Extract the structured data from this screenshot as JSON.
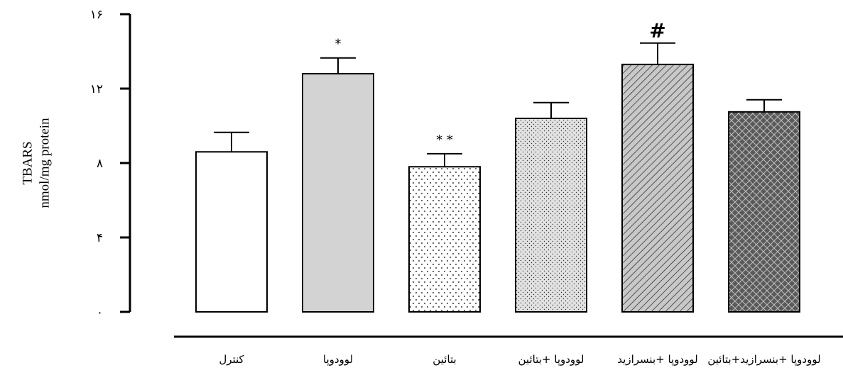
{
  "chart_data": {
    "type": "bar",
    "ylabel_line1": "TBARS",
    "ylabel_line2": "nmol/mg protein",
    "ylim": [
      0,
      16
    ],
    "yticks": [
      0,
      4,
      8,
      12,
      16
    ],
    "ytick_labels": [
      "٠",
      "۴",
      "٨",
      "١٢",
      "١۶"
    ],
    "categories": [
      "کنترل",
      "لوودوپا",
      "بتائین",
      "لوودوپا +بتائین",
      "لوودوپا +بنسرازید",
      "لوودوپا +بنسرازید+بتائین"
    ],
    "values": [
      8.6,
      12.8,
      7.8,
      10.4,
      13.3,
      10.75
    ],
    "errors": [
      1.05,
      0.85,
      0.7,
      0.85,
      1.15,
      0.65
    ],
    "annotations": [
      "",
      "*",
      "* *",
      "",
      "#",
      ""
    ],
    "patterns": [
      "white",
      "gray",
      "dots",
      "fine-dots",
      "diagonal-lines",
      "crosshatch"
    ],
    "colors": {
      "gray": "#d3d3d3",
      "dark": "#555555",
      "axis": "#000000"
    },
    "grid": false
  }
}
